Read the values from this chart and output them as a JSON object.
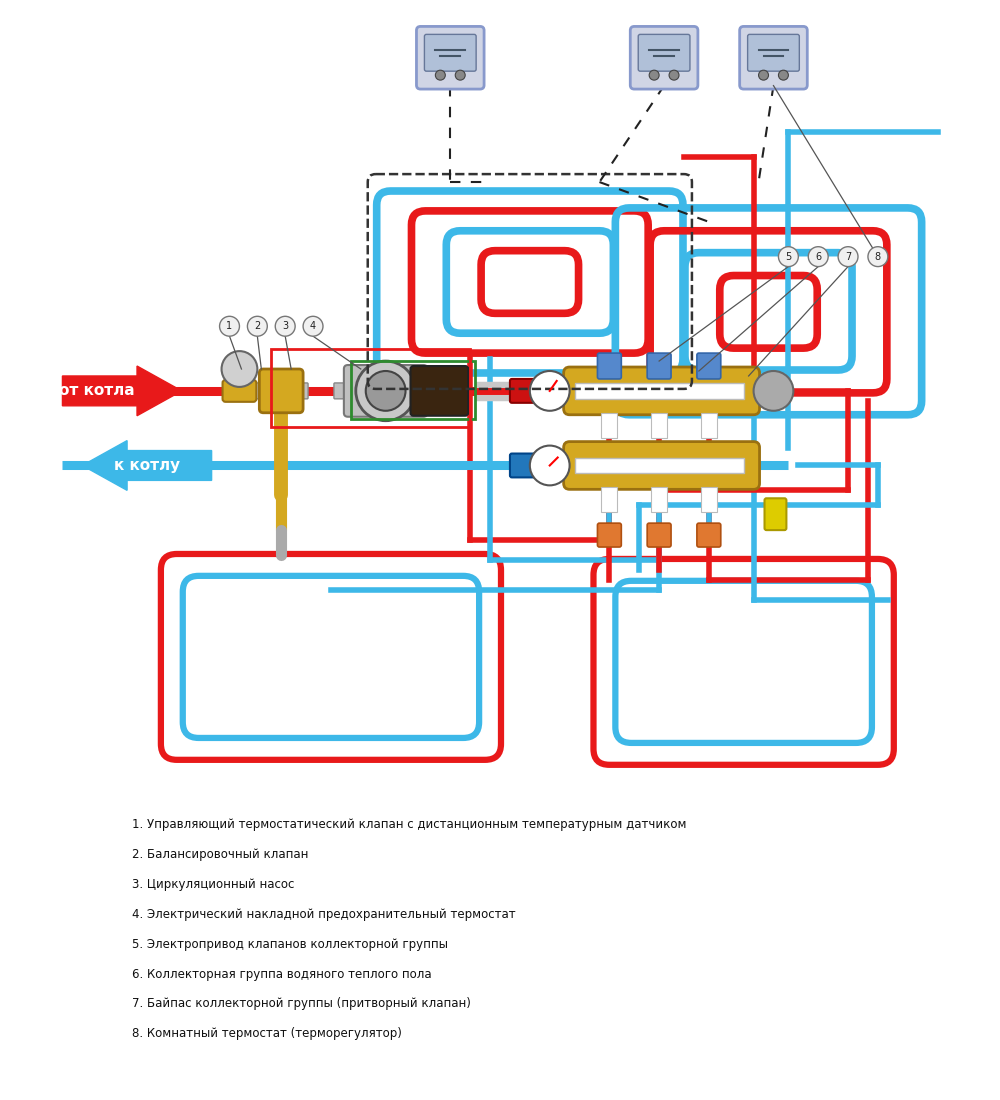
{
  "bg_color": "#ffffff",
  "red_color": "#e8191a",
  "blue_color": "#3db8e8",
  "gold_color": "#d4a820",
  "green_color": "#2e8b2e",
  "legend_items": [
    "1. Управляющий термостатический клапан с дистанционным температурным датчиком",
    "2. Балансировочный клапан",
    "3. Циркуляционный насос",
    "4. Электрический накладной предохранительный термостат",
    "5. Электропривод клапанов коллекторной группы",
    "6. Коллекторная группа водяного теплого пола",
    "7. Байпас коллекторной группы (притворный клапан)",
    "8. Комнатный термостат (терморегулятор)"
  ]
}
